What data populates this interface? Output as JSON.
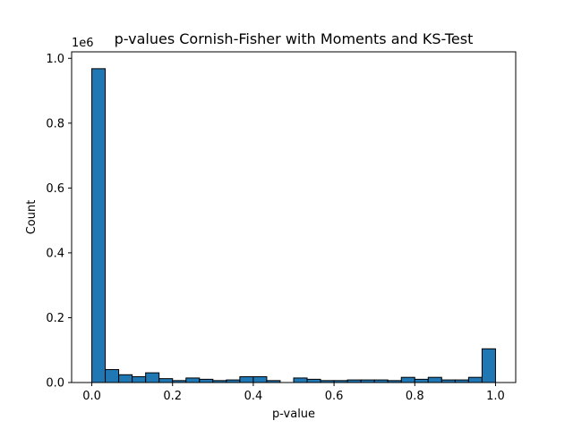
{
  "chart_data": {
    "type": "bar",
    "title": "p-values Cornish-Fisher with Moments and KS-Test",
    "xlabel": "p-value",
    "ylabel": "Count",
    "y_offset_text": "1e6",
    "xlim": [
      -0.05,
      1.05
    ],
    "ylim": [
      0,
      1.02
    ],
    "x_ticks": [
      0.0,
      0.2,
      0.4,
      0.6,
      0.8,
      1.0
    ],
    "x_tick_labels": [
      "0.0",
      "0.2",
      "0.4",
      "0.6",
      "0.8",
      "1.0"
    ],
    "y_ticks": [
      0.0,
      0.2,
      0.4,
      0.6,
      0.8,
      1.0
    ],
    "y_tick_labels": [
      "0.0",
      "0.2",
      "0.4",
      "0.6",
      "0.8",
      "1.0"
    ],
    "bin_width": 0.0333,
    "bin_starts": [
      0.0,
      0.0333,
      0.0667,
      0.1,
      0.1333,
      0.1667,
      0.2,
      0.2333,
      0.2667,
      0.3,
      0.3333,
      0.3667,
      0.4,
      0.4333,
      0.4667,
      0.5,
      0.5333,
      0.5667,
      0.6,
      0.6333,
      0.6667,
      0.7,
      0.7333,
      0.7667,
      0.8,
      0.8333,
      0.8667,
      0.9,
      0.9333,
      0.9667
    ],
    "values": [
      0.968,
      0.04,
      0.024,
      0.018,
      0.03,
      0.012,
      0.006,
      0.014,
      0.01,
      0.006,
      0.008,
      0.018,
      0.018,
      0.006,
      0.0,
      0.014,
      0.01,
      0.006,
      0.006,
      0.008,
      0.008,
      0.008,
      0.006,
      0.016,
      0.01,
      0.016,
      0.008,
      0.008,
      0.016,
      0.104
    ],
    "bar_color": "#1f77b4",
    "edge_color": "#000000",
    "grid": false
  }
}
